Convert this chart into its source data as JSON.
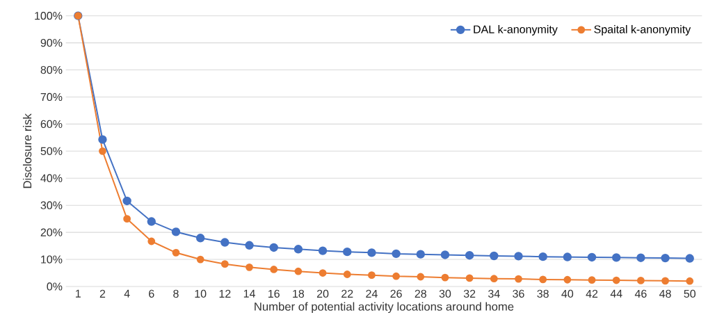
{
  "chart_data": {
    "type": "line",
    "xlabel": "Number of potential activity locations around home",
    "ylabel": "Disclosure risk",
    "categories": [
      "1",
      "2",
      "4",
      "6",
      "8",
      "10",
      "12",
      "14",
      "16",
      "18",
      "20",
      "22",
      "24",
      "26",
      "28",
      "30",
      "32",
      "34",
      "36",
      "38",
      "40",
      "42",
      "44",
      "46",
      "48",
      "50"
    ],
    "series": [
      {
        "name": "DAL k-anonymity",
        "color": "#4472c4",
        "values": [
          100,
          54.3,
          31.6,
          24,
          20.2,
          17.9,
          16.3,
          15.2,
          14.4,
          13.8,
          13.2,
          12.8,
          12.5,
          12.1,
          11.9,
          11.7,
          11.5,
          11.3,
          11.2,
          11.0,
          10.9,
          10.8,
          10.7,
          10.6,
          10.5,
          10.4
        ]
      },
      {
        "name": "Spaital k-anonymity",
        "color": "#ed7d31",
        "values": [
          100,
          50,
          25,
          16.7,
          12.5,
          10,
          8.3,
          7.1,
          6.3,
          5.6,
          5,
          4.5,
          4.2,
          3.8,
          3.6,
          3.3,
          3.1,
          2.9,
          2.8,
          2.6,
          2.5,
          2.4,
          2.3,
          2.2,
          2.1,
          2.0
        ]
      }
    ],
    "ylim": [
      0,
      100
    ],
    "yticks": [
      {
        "value": 0,
        "label": "0%"
      },
      {
        "value": 10,
        "label": "10%"
      },
      {
        "value": 20,
        "label": "20%"
      },
      {
        "value": 30,
        "label": "30%"
      },
      {
        "value": 40,
        "label": "40%"
      },
      {
        "value": 50,
        "label": "50%"
      },
      {
        "value": 60,
        "label": "60%"
      },
      {
        "value": 70,
        "label": "70%"
      },
      {
        "value": 80,
        "label": "80%"
      },
      {
        "value": 90,
        "label": "90%"
      },
      {
        "value": 100,
        "label": "100%"
      }
    ],
    "grid": "y",
    "legend": "top right",
    "marker": "circle",
    "line_style": "solid"
  }
}
